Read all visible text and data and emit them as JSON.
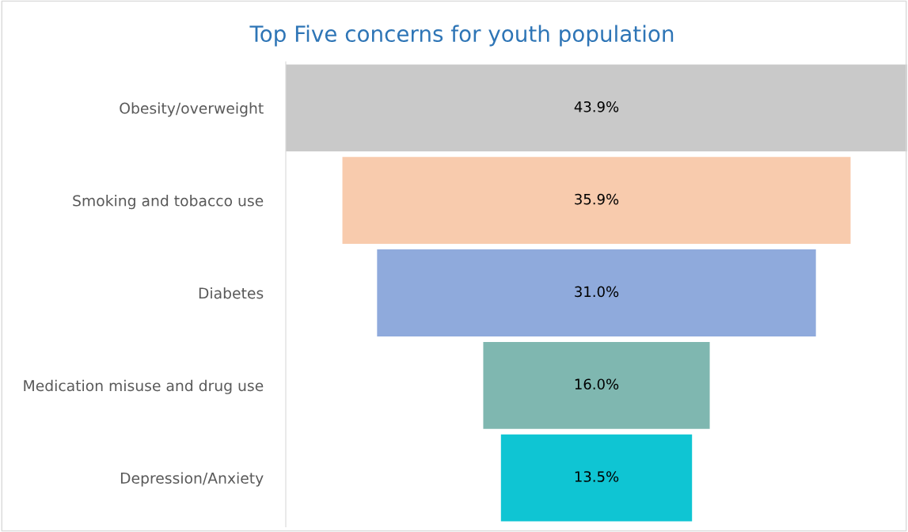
{
  "chart_data": {
    "type": "other",
    "title": "Top Five concerns for youth population",
    "categories": [
      "Obesity/overweight",
      "Smoking and tobacco use",
      "Diabetes",
      "Medication misuse and drug use",
      "Depression/Anxiety"
    ],
    "values": [
      43.9,
      35.9,
      31.0,
      16.0,
      13.5
    ],
    "value_labels": [
      "43.9%",
      "35.9%",
      "31.0%",
      "16.0%",
      "13.5%"
    ],
    "colors": [
      "#c9c9c9",
      "#f8cbad",
      "#8faadc",
      "#7fb7b0",
      "#0fc5d3"
    ]
  }
}
